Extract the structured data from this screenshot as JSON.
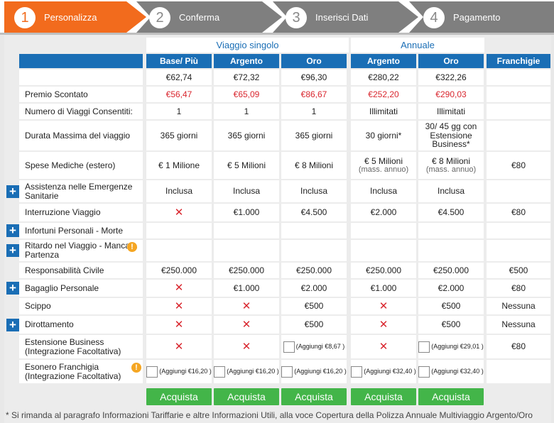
{
  "steps": [
    {
      "num": "1",
      "label": "Personalizza",
      "active": true
    },
    {
      "num": "2",
      "label": "Conferma"
    },
    {
      "num": "3",
      "label": "Inserisci Dati"
    },
    {
      "num": "4",
      "label": "Pagamento"
    }
  ],
  "groups": {
    "single": "Viaggio singolo",
    "annual": "Annuale"
  },
  "columns": [
    "Base/ Più",
    "Argento",
    "Oro",
    "Argento",
    "Oro",
    "Franchigie"
  ],
  "prices": [
    "€62,74",
    "€72,32",
    "€96,30",
    "€280,22",
    "€322,26",
    ""
  ],
  "rows": {
    "premio": {
      "label": "Premio Scontato",
      "values": [
        "€56,47",
        "€65,09",
        "€86,67",
        "€252,20",
        "€290,03",
        ""
      ]
    },
    "viaggi": {
      "label": "Numero di Viaggi Consentiti:",
      "values": [
        "1",
        "1",
        "1",
        "Illimitati",
        "Illimitati",
        ""
      ]
    },
    "durata": {
      "label": "Durata Massima del viaggio",
      "values": [
        "365 giorni",
        "365 giorni",
        "365 giorni",
        "30 giorni*",
        "30/ 45 gg con Estensione Business*",
        ""
      ]
    },
    "spese": {
      "label": "Spese Mediche (estero)",
      "values": [
        "€ 1 Milione",
        "€ 5 Milioni",
        "€ 8 Milioni",
        "€ 5 Milioni",
        "€ 8 Milioni",
        "€80"
      ],
      "sub": "(mass. annuo)"
    },
    "assistenza": {
      "label": "Assistenza nelle Emergenze Sanitarie",
      "values": [
        "Inclusa",
        "Inclusa",
        "Inclusa",
        "Inclusa",
        "Inclusa",
        ""
      ]
    },
    "interruzione": {
      "label": "Interruzione Viaggio",
      "values": [
        "",
        "€1.000",
        "€4.500",
        "€2.000",
        "€4.500",
        "€80"
      ]
    },
    "infortuni": {
      "label": "Infortuni Personali - Morte"
    },
    "ritardo": {
      "label": "Ritardo nel Viaggio - Mancata Partenza"
    },
    "responsabilita": {
      "label": "Responsabilità Civile",
      "values": [
        "€250.000",
        "€250.000",
        "€250.000",
        "€250.000",
        "€250.000",
        "€500"
      ]
    },
    "bagaglio": {
      "label": "Bagaglio Personale",
      "values": [
        "",
        "€1.000",
        "€2.000",
        "€1.000",
        "€2.000",
        "€80"
      ]
    },
    "scippo": {
      "label": "Scippo",
      "values": [
        "",
        "",
        "€500",
        "",
        "€500",
        "Nessuna"
      ]
    },
    "dirottamento": {
      "label": "Dirottamento",
      "values": [
        "",
        "",
        "€500",
        "",
        "€500",
        "Nessuna"
      ]
    },
    "estensione": {
      "label": "Estensione Business (Integrazione Facoltativa)",
      "add_oro": "(Aggiungi €8,67 )",
      "add_annual_oro": "(Aggiungi €29,01 )",
      "franchigia": "€80"
    },
    "esonero": {
      "label": "Esonero Franchigia (Integrazione Facoltativa)",
      "adds": [
        "(Aggiungi €16,20 )",
        "(Aggiungi €16,20 )",
        "(Aggiungi €16,20 )",
        "(Aggiungi €32,40 )",
        "(Aggiungi €32,40 )"
      ]
    }
  },
  "icons": {
    "plus": "+",
    "warn": "!",
    "cross": "✕"
  },
  "buy_label": "Acquista",
  "footnote": "* Si rimanda al paragrafo Informazioni Tariffarie e altre Informazioni Utili, alla voce Copertura della Polizza Annuale Multiviaggio Argento/Oro",
  "colors": {
    "accent": "#f26b1d",
    "step_bg": "#7f7f7f",
    "header": "#1a6eb5",
    "buy": "#43b549",
    "discount": "#d9262e"
  }
}
